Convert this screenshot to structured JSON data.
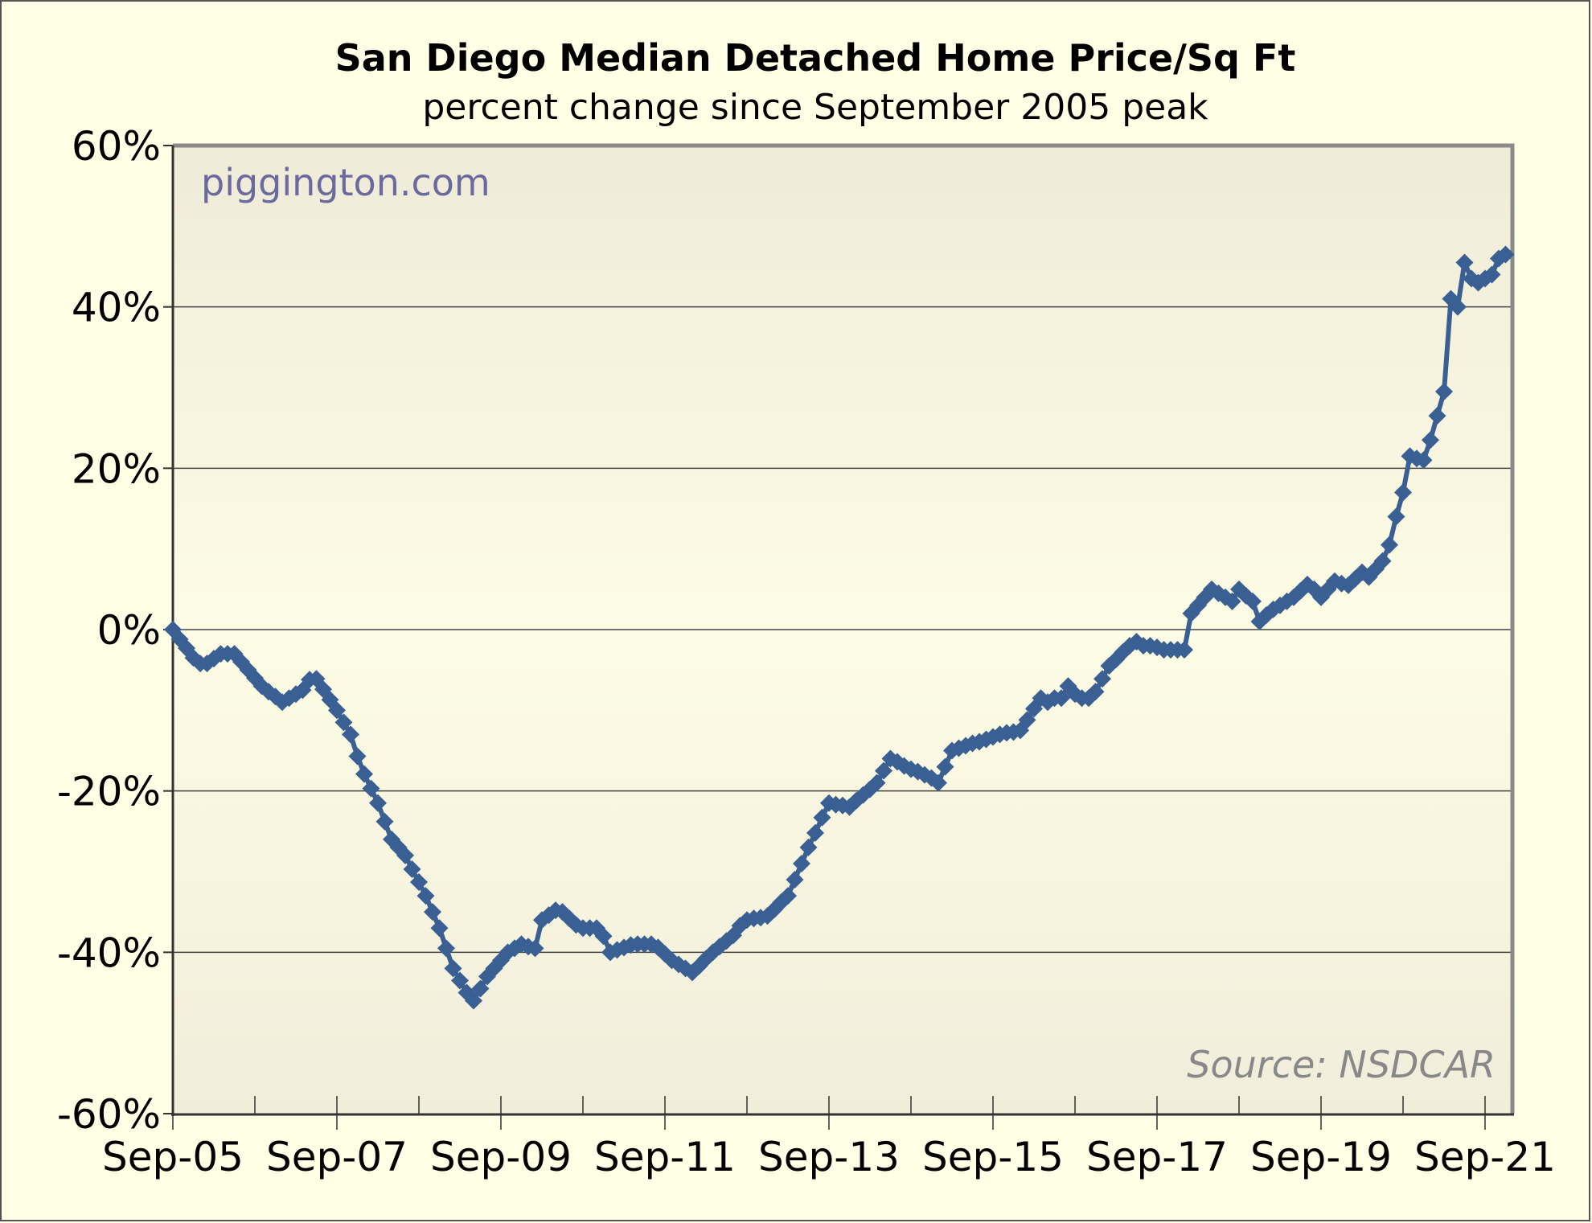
{
  "chart_data": {
    "type": "line",
    "title": "San Diego Median Detached Home Price/Sq Ft",
    "subtitle": "percent change since September 2005 peak",
    "watermark": "piggington.com",
    "source": "Source: NSDCAR",
    "xlabel": "",
    "ylabel": "",
    "x_start": "Sep-05",
    "x_frequency": "monthly",
    "x_tick_labels": [
      "Sep-05",
      "Sep-07",
      "Sep-09",
      "Sep-11",
      "Sep-13",
      "Sep-15",
      "Sep-17",
      "Sep-19",
      "Sep-21"
    ],
    "y_tick_labels": [
      "60%",
      "40%",
      "20%",
      "0%",
      "-20%",
      "-40%",
      "-60%"
    ],
    "y_ticks": [
      60,
      40,
      20,
      0,
      -20,
      -40,
      -60
    ],
    "ylim": [
      -60,
      60
    ],
    "xlim_months": [
      0,
      196
    ],
    "grid": "horizontal",
    "series": [
      {
        "name": "San Diego median detached home price/sq ft % change",
        "color": "#3a6093",
        "marker": "diamond",
        "values": [
          0,
          -1.2,
          -2.3,
          -3.5,
          -4.2,
          -4.2,
          -3.6,
          -3,
          -3,
          -3,
          -4,
          -5,
          -6,
          -7,
          -7.7,
          -8.3,
          -9,
          -8.5,
          -8,
          -7.5,
          -6.2,
          -6.1,
          -7.4,
          -8.7,
          -10,
          -11.5,
          -13,
          -15.7,
          -17.9,
          -19.7,
          -21.5,
          -23.8,
          -26,
          -27,
          -28,
          -29.7,
          -31.3,
          -33,
          -35,
          -37,
          -39.5,
          -42,
          -43.5,
          -45,
          -46,
          -44.5,
          -43,
          -42,
          -41,
          -40,
          -39.5,
          -39,
          -39.3,
          -39.5,
          -36,
          -35.4,
          -34.8,
          -35,
          -35.8,
          -36.6,
          -37,
          -37,
          -37,
          -38,
          -40,
          -39.7,
          -39.4,
          -39.1,
          -39,
          -39,
          -39,
          -39.4,
          -40.2,
          -41,
          -41.5,
          -42,
          -42.5,
          -41.7,
          -40.8,
          -40,
          -39.3,
          -38.6,
          -37.9,
          -36.7,
          -36,
          -35.8,
          -35.7,
          -35.5,
          -34.7,
          -33.8,
          -33,
          -31,
          -29,
          -27,
          -25.2,
          -23.3,
          -21.5,
          -21.7,
          -21.8,
          -22,
          -21.2,
          -20.5,
          -19.8,
          -19,
          -17.5,
          -16,
          -16.4,
          -16.9,
          -17.3,
          -17.6,
          -18,
          -18.4,
          -19,
          -17,
          -15,
          -14.7,
          -14.4,
          -14.1,
          -13.9,
          -13.6,
          -13.3,
          -13,
          -12.8,
          -12.7,
          -12.5,
          -11.2,
          -9.8,
          -8.5,
          -9,
          -8.5,
          -8.5,
          -7,
          -8,
          -8.5,
          -8.5,
          -7.7,
          -6.1,
          -4.5,
          -3.7,
          -2.8,
          -2,
          -1.5,
          -2,
          -2,
          -2.2,
          -2.5,
          -2.5,
          -2.5,
          -2.5,
          2,
          3,
          4,
          5,
          4.5,
          4,
          3.5,
          5,
          4.2,
          3.5,
          1,
          1.8,
          2.5,
          3,
          3.5,
          4,
          4.8,
          5.6,
          5,
          4,
          5,
          6,
          5.7,
          5.5,
          6.3,
          7.1,
          6.5,
          7.5,
          8.5,
          10.5,
          14,
          17,
          21.5,
          21.2,
          21,
          23.5,
          26.5,
          29.5,
          41,
          40,
          45.5,
          43.5,
          43,
          43.5,
          44,
          46,
          46.5
        ]
      }
    ]
  }
}
